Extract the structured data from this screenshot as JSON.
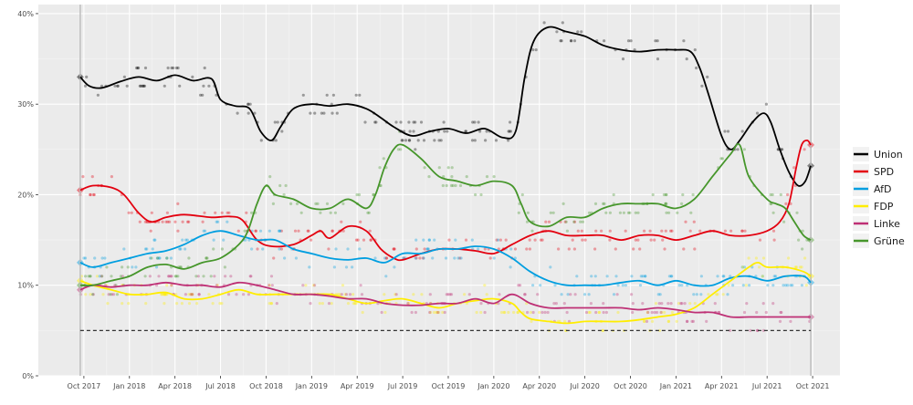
{
  "chart_data": {
    "type": "line",
    "title": "",
    "xlabel": "",
    "ylabel": "",
    "ylim": [
      0,
      41
    ],
    "y_ticks": [
      {
        "value": 0,
        "label": "0%"
      },
      {
        "value": 10,
        "label": "10%"
      },
      {
        "value": 20,
        "label": "20%"
      },
      {
        "value": 30,
        "label": "30%"
      },
      {
        "value": 40,
        "label": "40%"
      }
    ],
    "x_ticks": [
      {
        "value": 2017.75,
        "label": "Oct 2017"
      },
      {
        "value": 2018.0,
        "label": "Jan 2018"
      },
      {
        "value": 2018.25,
        "label": "Apr 2018"
      },
      {
        "value": 2018.5,
        "label": "Jul 2018"
      },
      {
        "value": 2018.75,
        "label": "Oct 2018"
      },
      {
        "value": 2019.0,
        "label": "Jan 2019"
      },
      {
        "value": 2019.25,
        "label": "Apr 2019"
      },
      {
        "value": 2019.5,
        "label": "Jul 2019"
      },
      {
        "value": 2019.75,
        "label": "Oct 2019"
      },
      {
        "value": 2020.0,
        "label": "Jan 2020"
      },
      {
        "value": 2020.25,
        "label": "Apr 2020"
      },
      {
        "value": 2020.5,
        "label": "Jul 2020"
      },
      {
        "value": 2020.75,
        "label": "Oct 2020"
      },
      {
        "value": 2021.0,
        "label": "Jan 2021"
      },
      {
        "value": 2021.25,
        "label": "Apr 2021"
      },
      {
        "value": 2021.5,
        "label": "Jul 2021"
      },
      {
        "value": 2021.75,
        "label": "Oct 2021"
      }
    ],
    "xlim": [
      2017.5,
      2021.9
    ],
    "threshold": 5,
    "election_markers": [
      2017.73,
      2021.74
    ],
    "grid": true,
    "legend_position": "right",
    "series": [
      {
        "name": "Union",
        "color": "#000000",
        "points": [
          [
            2017.73,
            33
          ],
          [
            2017.78,
            32
          ],
          [
            2017.85,
            31.8
          ],
          [
            2017.95,
            32.5
          ],
          [
            2018.05,
            33
          ],
          [
            2018.15,
            32.6
          ],
          [
            2018.25,
            33.2
          ],
          [
            2018.35,
            32.6
          ],
          [
            2018.45,
            32.8
          ],
          [
            2018.5,
            30.5
          ],
          [
            2018.58,
            29.8
          ],
          [
            2018.66,
            29.5
          ],
          [
            2018.72,
            27
          ],
          [
            2018.78,
            26
          ],
          [
            2018.83,
            27.5
          ],
          [
            2018.9,
            29.5
          ],
          [
            2019.0,
            30
          ],
          [
            2019.1,
            29.8
          ],
          [
            2019.2,
            30
          ],
          [
            2019.3,
            29.5
          ],
          [
            2019.38,
            28.5
          ],
          [
            2019.45,
            27.5
          ],
          [
            2019.55,
            26.5
          ],
          [
            2019.65,
            27
          ],
          [
            2019.75,
            27.3
          ],
          [
            2019.85,
            26.8
          ],
          [
            2019.95,
            27.3
          ],
          [
            2020.05,
            26.3
          ],
          [
            2020.12,
            27
          ],
          [
            2020.17,
            33
          ],
          [
            2020.22,
            37
          ],
          [
            2020.3,
            38.5
          ],
          [
            2020.4,
            38
          ],
          [
            2020.5,
            37.5
          ],
          [
            2020.6,
            36.5
          ],
          [
            2020.7,
            36
          ],
          [
            2020.8,
            35.8
          ],
          [
            2020.9,
            36
          ],
          [
            2021.0,
            36
          ],
          [
            2021.08,
            35.8
          ],
          [
            2021.13,
            34
          ],
          [
            2021.18,
            31
          ],
          [
            2021.25,
            26.5
          ],
          [
            2021.3,
            25
          ],
          [
            2021.35,
            26
          ],
          [
            2021.42,
            28
          ],
          [
            2021.48,
            29
          ],
          [
            2021.52,
            28
          ],
          [
            2021.57,
            25
          ],
          [
            2021.62,
            22.5
          ],
          [
            2021.67,
            21
          ],
          [
            2021.71,
            21.5
          ],
          [
            2021.74,
            23.2
          ]
        ]
      },
      {
        "name": "SPD",
        "color": "#e3000f",
        "points": [
          [
            2017.73,
            20.5
          ],
          [
            2017.8,
            21
          ],
          [
            2017.9,
            20.8
          ],
          [
            2017.97,
            20
          ],
          [
            2018.05,
            18
          ],
          [
            2018.12,
            17
          ],
          [
            2018.2,
            17.5
          ],
          [
            2018.3,
            17.8
          ],
          [
            2018.45,
            17.5
          ],
          [
            2018.55,
            17.6
          ],
          [
            2018.62,
            17.2
          ],
          [
            2018.7,
            15
          ],
          [
            2018.78,
            14.3
          ],
          [
            2018.9,
            14.5
          ],
          [
            2019.0,
            15.5
          ],
          [
            2019.05,
            16
          ],
          [
            2019.1,
            15.2
          ],
          [
            2019.2,
            16.5
          ],
          [
            2019.3,
            16
          ],
          [
            2019.38,
            14
          ],
          [
            2019.45,
            13
          ],
          [
            2019.5,
            12.8
          ],
          [
            2019.6,
            13.5
          ],
          [
            2019.7,
            14
          ],
          [
            2019.8,
            14
          ],
          [
            2019.9,
            13.8
          ],
          [
            2020.0,
            13.5
          ],
          [
            2020.1,
            14.5
          ],
          [
            2020.2,
            15.5
          ],
          [
            2020.3,
            16
          ],
          [
            2020.4,
            15.5
          ],
          [
            2020.5,
            15.5
          ],
          [
            2020.6,
            15.5
          ],
          [
            2020.7,
            15
          ],
          [
            2020.8,
            15.5
          ],
          [
            2020.9,
            15.5
          ],
          [
            2021.0,
            15
          ],
          [
            2021.1,
            15.5
          ],
          [
            2021.2,
            16
          ],
          [
            2021.3,
            15.5
          ],
          [
            2021.4,
            15.5
          ],
          [
            2021.5,
            16
          ],
          [
            2021.57,
            17
          ],
          [
            2021.62,
            19
          ],
          [
            2021.66,
            23
          ],
          [
            2021.69,
            25.5
          ],
          [
            2021.72,
            26
          ],
          [
            2021.74,
            25.5
          ]
        ]
      },
      {
        "name": "AfD",
        "color": "#009ee0",
        "points": [
          [
            2017.73,
            12.5
          ],
          [
            2017.8,
            12
          ],
          [
            2017.9,
            12.5
          ],
          [
            2018.0,
            13
          ],
          [
            2018.1,
            13.5
          ],
          [
            2018.2,
            13.8
          ],
          [
            2018.3,
            14.5
          ],
          [
            2018.4,
            15.5
          ],
          [
            2018.5,
            16
          ],
          [
            2018.6,
            15.5
          ],
          [
            2018.7,
            15
          ],
          [
            2018.8,
            15
          ],
          [
            2018.9,
            14
          ],
          [
            2019.0,
            13.5
          ],
          [
            2019.1,
            13
          ],
          [
            2019.2,
            12.8
          ],
          [
            2019.3,
            13
          ],
          [
            2019.4,
            12.5
          ],
          [
            2019.5,
            13.5
          ],
          [
            2019.6,
            13.5
          ],
          [
            2019.7,
            14
          ],
          [
            2019.8,
            14
          ],
          [
            2019.9,
            14.3
          ],
          [
            2020.0,
            14
          ],
          [
            2020.1,
            13
          ],
          [
            2020.2,
            11.5
          ],
          [
            2020.3,
            10.5
          ],
          [
            2020.4,
            10
          ],
          [
            2020.5,
            10
          ],
          [
            2020.6,
            10
          ],
          [
            2020.7,
            10.3
          ],
          [
            2020.8,
            10.5
          ],
          [
            2020.9,
            10
          ],
          [
            2021.0,
            10.5
          ],
          [
            2021.1,
            10
          ],
          [
            2021.2,
            10
          ],
          [
            2021.3,
            10.8
          ],
          [
            2021.4,
            11
          ],
          [
            2021.5,
            10.5
          ],
          [
            2021.6,
            11
          ],
          [
            2021.7,
            11
          ],
          [
            2021.74,
            10.3
          ]
        ]
      },
      {
        "name": "FDP",
        "color": "#ffed00",
        "points": [
          [
            2017.73,
            10.5
          ],
          [
            2017.8,
            10
          ],
          [
            2017.9,
            9.5
          ],
          [
            2018.0,
            9
          ],
          [
            2018.1,
            9
          ],
          [
            2018.2,
            9.2
          ],
          [
            2018.3,
            8.5
          ],
          [
            2018.4,
            8.5
          ],
          [
            2018.5,
            9
          ],
          [
            2018.6,
            9.5
          ],
          [
            2018.7,
            9
          ],
          [
            2018.8,
            9
          ],
          [
            2018.9,
            9
          ],
          [
            2019.0,
            9
          ],
          [
            2019.1,
            9
          ],
          [
            2019.2,
            8.5
          ],
          [
            2019.3,
            8
          ],
          [
            2019.4,
            8.3
          ],
          [
            2019.5,
            8.5
          ],
          [
            2019.6,
            8
          ],
          [
            2019.7,
            7.5
          ],
          [
            2019.8,
            8
          ],
          [
            2019.9,
            8.3
          ],
          [
            2020.0,
            8.5
          ],
          [
            2020.1,
            8
          ],
          [
            2020.15,
            7
          ],
          [
            2020.2,
            6.3
          ],
          [
            2020.3,
            6
          ],
          [
            2020.4,
            5.8
          ],
          [
            2020.5,
            6
          ],
          [
            2020.6,
            6
          ],
          [
            2020.7,
            6
          ],
          [
            2020.8,
            6.2
          ],
          [
            2020.9,
            6.5
          ],
          [
            2021.0,
            6.8
          ],
          [
            2021.1,
            7.5
          ],
          [
            2021.2,
            9
          ],
          [
            2021.3,
            10.5
          ],
          [
            2021.4,
            12
          ],
          [
            2021.45,
            12.5
          ],
          [
            2021.5,
            12
          ],
          [
            2021.6,
            12
          ],
          [
            2021.7,
            11.5
          ],
          [
            2021.74,
            11
          ]
        ]
      },
      {
        "name": "Linke",
        "color": "#be3075",
        "points": [
          [
            2017.73,
            9.5
          ],
          [
            2017.8,
            10
          ],
          [
            2017.9,
            9.8
          ],
          [
            2018.0,
            10
          ],
          [
            2018.1,
            10
          ],
          [
            2018.2,
            10.3
          ],
          [
            2018.3,
            10
          ],
          [
            2018.4,
            10
          ],
          [
            2018.5,
            9.8
          ],
          [
            2018.6,
            10.3
          ],
          [
            2018.7,
            10
          ],
          [
            2018.8,
            9.5
          ],
          [
            2018.9,
            9
          ],
          [
            2019.0,
            9
          ],
          [
            2019.1,
            8.8
          ],
          [
            2019.2,
            8.5
          ],
          [
            2019.3,
            8.5
          ],
          [
            2019.4,
            8
          ],
          [
            2019.5,
            7.8
          ],
          [
            2019.6,
            7.8
          ],
          [
            2019.7,
            8
          ],
          [
            2019.8,
            8
          ],
          [
            2019.9,
            8.5
          ],
          [
            2020.0,
            8
          ],
          [
            2020.1,
            9
          ],
          [
            2020.2,
            8
          ],
          [
            2020.3,
            7.5
          ],
          [
            2020.4,
            7.5
          ],
          [
            2020.5,
            7.5
          ],
          [
            2020.6,
            7.5
          ],
          [
            2020.7,
            7.5
          ],
          [
            2020.8,
            7.3
          ],
          [
            2020.9,
            7.5
          ],
          [
            2021.0,
            7.3
          ],
          [
            2021.1,
            7
          ],
          [
            2021.2,
            7
          ],
          [
            2021.3,
            6.5
          ],
          [
            2021.4,
            6.5
          ],
          [
            2021.5,
            6.5
          ],
          [
            2021.6,
            6.5
          ],
          [
            2021.7,
            6.5
          ],
          [
            2021.74,
            6.5
          ]
        ]
      },
      {
        "name": "Grüne",
        "color": "#46962b",
        "points": [
          [
            2017.73,
            10
          ],
          [
            2017.8,
            10
          ],
          [
            2017.9,
            10.5
          ],
          [
            2018.0,
            11
          ],
          [
            2018.1,
            12
          ],
          [
            2018.2,
            12.3
          ],
          [
            2018.3,
            11.8
          ],
          [
            2018.4,
            12.5
          ],
          [
            2018.5,
            13
          ],
          [
            2018.6,
            14.5
          ],
          [
            2018.65,
            16
          ],
          [
            2018.7,
            19
          ],
          [
            2018.75,
            21
          ],
          [
            2018.8,
            20
          ],
          [
            2018.9,
            19.5
          ],
          [
            2019.0,
            18.5
          ],
          [
            2019.1,
            18.5
          ],
          [
            2019.2,
            19.5
          ],
          [
            2019.3,
            18.5
          ],
          [
            2019.35,
            20
          ],
          [
            2019.4,
            23
          ],
          [
            2019.45,
            25
          ],
          [
            2019.5,
            25.5
          ],
          [
            2019.6,
            24
          ],
          [
            2019.7,
            22
          ],
          [
            2019.8,
            21.5
          ],
          [
            2019.9,
            21
          ],
          [
            2020.0,
            21.5
          ],
          [
            2020.1,
            21
          ],
          [
            2020.15,
            19
          ],
          [
            2020.2,
            17
          ],
          [
            2020.3,
            16.5
          ],
          [
            2020.4,
            17.5
          ],
          [
            2020.5,
            17.5
          ],
          [
            2020.6,
            18.5
          ],
          [
            2020.7,
            19
          ],
          [
            2020.8,
            19
          ],
          [
            2020.9,
            19
          ],
          [
            2021.0,
            18.5
          ],
          [
            2021.1,
            19.5
          ],
          [
            2021.2,
            22
          ],
          [
            2021.3,
            24.5
          ],
          [
            2021.35,
            25.5
          ],
          [
            2021.4,
            22
          ],
          [
            2021.5,
            19.5
          ],
          [
            2021.55,
            19
          ],
          [
            2021.6,
            18.5
          ],
          [
            2021.65,
            17
          ],
          [
            2021.7,
            15.5
          ],
          [
            2021.74,
            15
          ]
        ]
      }
    ]
  }
}
